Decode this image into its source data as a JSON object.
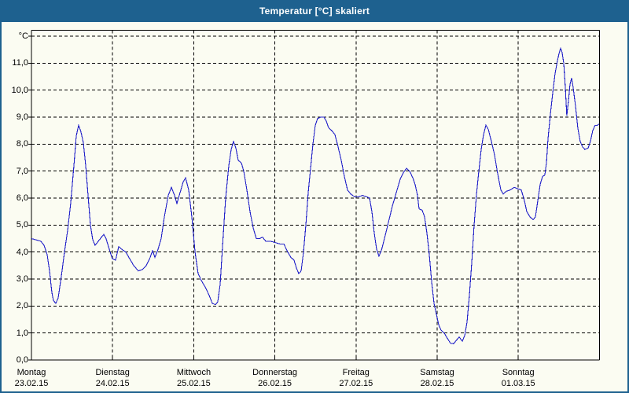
{
  "window": {
    "title": "Temperatur [°C] skaliert"
  },
  "colors": {
    "titlebar": "#1E618F",
    "window_border": "#1E618F",
    "background": "#FBFCF2",
    "grid": "#000000",
    "curve": "#2121C8",
    "title_text": "#FFFFFF"
  },
  "chart_data": {
    "type": "line",
    "title": "Temperatur [°C] skaliert",
    "y_unit_label": "°C",
    "ylabel": "°C",
    "xlabel": "",
    "ylim": [
      0,
      12
    ],
    "x_range_days": [
      0,
      7
    ],
    "grid": "dashed",
    "legend_position": "none",
    "y_ticks": [
      {
        "value": 12,
        "label": "°C"
      },
      {
        "value": 11,
        "label": "11,0"
      },
      {
        "value": 10,
        "label": "10,0"
      },
      {
        "value": 9,
        "label": "9,0"
      },
      {
        "value": 8,
        "label": "8,0"
      },
      {
        "value": 7,
        "label": "7,0"
      },
      {
        "value": 6,
        "label": "6,0"
      },
      {
        "value": 5,
        "label": "5,0"
      },
      {
        "value": 4,
        "label": "4,0"
      },
      {
        "value": 3,
        "label": "3,0"
      },
      {
        "value": 2,
        "label": "2,0"
      },
      {
        "value": 1,
        "label": "1,0"
      },
      {
        "value": 0,
        "label": "0,0"
      }
    ],
    "x_days": [
      {
        "weekday": "Montag",
        "date": "23.02.15"
      },
      {
        "weekday": "Dienstag",
        "date": "24.02.15"
      },
      {
        "weekday": "Mittwoch",
        "date": "25.02.15"
      },
      {
        "weekday": "Donnerstag",
        "date": "26.02.15"
      },
      {
        "weekday": "Freitag",
        "date": "27.02.15"
      },
      {
        "weekday": "Samstag",
        "date": "28.02.15"
      },
      {
        "weekday": "Sonntag",
        "date": "01.03.15"
      }
    ],
    "series": [
      {
        "name": "Temperatur",
        "color": "#2121C8",
        "points": [
          [
            0,
            4.5
          ],
          [
            0.058,
            4.45
          ],
          [
            0.116,
            4.4
          ],
          [
            0.155,
            4.25
          ],
          [
            0.194,
            3.9
          ],
          [
            0.223,
            3.3
          ],
          [
            0.252,
            2.5
          ],
          [
            0.271,
            2.2
          ],
          [
            0.3,
            2.1
          ],
          [
            0.329,
            2.3
          ],
          [
            0.368,
            3.1
          ],
          [
            0.407,
            4.0
          ],
          [
            0.446,
            4.8
          ],
          [
            0.484,
            5.8
          ],
          [
            0.523,
            7.2
          ],
          [
            0.552,
            8.3
          ],
          [
            0.581,
            8.7
          ],
          [
            0.61,
            8.45
          ],
          [
            0.64,
            8.05
          ],
          [
            0.669,
            7.2
          ],
          [
            0.698,
            6.1
          ],
          [
            0.727,
            5.0
          ],
          [
            0.756,
            4.45
          ],
          [
            0.785,
            4.25
          ],
          [
            0.824,
            4.4
          ],
          [
            0.862,
            4.55
          ],
          [
            0.891,
            4.65
          ],
          [
            0.92,
            4.5
          ],
          [
            0.959,
            4.1
          ],
          [
            0.998,
            3.75
          ],
          [
            1.037,
            3.7
          ],
          [
            1.076,
            4.2
          ],
          [
            1.114,
            4.1
          ],
          [
            1.163,
            4.0
          ],
          [
            1.211,
            3.75
          ],
          [
            1.26,
            3.5
          ],
          [
            1.318,
            3.3
          ],
          [
            1.366,
            3.35
          ],
          [
            1.415,
            3.5
          ],
          [
            1.463,
            3.8
          ],
          [
            1.492,
            4.05
          ],
          [
            1.521,
            3.8
          ],
          [
            1.56,
            4.1
          ],
          [
            1.599,
            4.5
          ],
          [
            1.638,
            5.3
          ],
          [
            1.686,
            6.1
          ],
          [
            1.725,
            6.4
          ],
          [
            1.764,
            6.1
          ],
          [
            1.793,
            5.8
          ],
          [
            1.831,
            6.2
          ],
          [
            1.87,
            6.6
          ],
          [
            1.899,
            6.75
          ],
          [
            1.938,
            6.3
          ],
          [
            1.977,
            5.3
          ],
          [
            2.016,
            4.0
          ],
          [
            2.054,
            3.2
          ],
          [
            2.093,
            2.95
          ],
          [
            2.141,
            2.7
          ],
          [
            2.19,
            2.4
          ],
          [
            2.229,
            2.1
          ],
          [
            2.267,
            2.05
          ],
          [
            2.296,
            2.15
          ],
          [
            2.326,
            2.8
          ],
          [
            2.355,
            4.2
          ],
          [
            2.393,
            6.0
          ],
          [
            2.432,
            7.2
          ],
          [
            2.461,
            7.8
          ],
          [
            2.49,
            8.1
          ],
          [
            2.519,
            7.85
          ],
          [
            2.548,
            7.4
          ],
          [
            2.587,
            7.3
          ],
          [
            2.616,
            7.0
          ],
          [
            2.655,
            6.3
          ],
          [
            2.694,
            5.5
          ],
          [
            2.733,
            4.9
          ],
          [
            2.771,
            4.5
          ],
          [
            2.81,
            4.5
          ],
          [
            2.849,
            4.55
          ],
          [
            2.888,
            4.4
          ],
          [
            2.946,
            4.4
          ],
          [
            3.004,
            4.35
          ],
          [
            3.062,
            4.3
          ],
          [
            3.11,
            4.3
          ],
          [
            3.159,
            4.0
          ],
          [
            3.198,
            3.8
          ],
          [
            3.236,
            3.7
          ],
          [
            3.266,
            3.4
          ],
          [
            3.295,
            3.2
          ],
          [
            3.324,
            3.3
          ],
          [
            3.353,
            4.0
          ],
          [
            3.382,
            5.0
          ],
          [
            3.411,
            6.2
          ],
          [
            3.44,
            7.1
          ],
          [
            3.469,
            8.0
          ],
          [
            3.498,
            8.7
          ],
          [
            3.527,
            8.95
          ],
          [
            3.566,
            9.0
          ],
          [
            3.605,
            9.0
          ],
          [
            3.634,
            8.85
          ],
          [
            3.663,
            8.6
          ],
          [
            3.702,
            8.5
          ],
          [
            3.74,
            8.35
          ],
          [
            3.779,
            7.9
          ],
          [
            3.818,
            7.4
          ],
          [
            3.857,
            6.8
          ],
          [
            3.895,
            6.3
          ],
          [
            3.934,
            6.15
          ],
          [
            3.983,
            6.05
          ],
          [
            4.031,
            6.05
          ],
          [
            4.08,
            6.1
          ],
          [
            4.128,
            6.05
          ],
          [
            4.167,
            6.0
          ],
          [
            4.196,
            5.5
          ],
          [
            4.225,
            4.7
          ],
          [
            4.254,
            4.1
          ],
          [
            4.283,
            3.85
          ],
          [
            4.312,
            4.05
          ],
          [
            4.351,
            4.5
          ],
          [
            4.399,
            5.1
          ],
          [
            4.448,
            5.7
          ],
          [
            4.496,
            6.2
          ],
          [
            4.545,
            6.7
          ],
          [
            4.584,
            6.95
          ],
          [
            4.622,
            7.1
          ],
          [
            4.661,
            7.0
          ],
          [
            4.7,
            6.75
          ],
          [
            4.729,
            6.5
          ],
          [
            4.758,
            6.1
          ],
          [
            4.777,
            5.6
          ],
          [
            4.816,
            5.55
          ],
          [
            4.845,
            5.3
          ],
          [
            4.874,
            4.7
          ],
          [
            4.903,
            3.9
          ],
          [
            4.932,
            2.9
          ],
          [
            4.961,
            2.1
          ],
          [
            4.99,
            1.7
          ],
          [
            5.019,
            1.3
          ],
          [
            5.048,
            1.1
          ],
          [
            5.087,
            1.0
          ],
          [
            5.126,
            0.8
          ],
          [
            5.165,
            0.62
          ],
          [
            5.203,
            0.6
          ],
          [
            5.242,
            0.75
          ],
          [
            5.271,
            0.85
          ],
          [
            5.31,
            0.7
          ],
          [
            5.339,
            0.9
          ],
          [
            5.368,
            1.4
          ],
          [
            5.397,
            2.4
          ],
          [
            5.426,
            3.6
          ],
          [
            5.455,
            5.0
          ],
          [
            5.484,
            6.1
          ],
          [
            5.514,
            7.0
          ],
          [
            5.543,
            7.8
          ],
          [
            5.572,
            8.35
          ],
          [
            5.601,
            8.7
          ],
          [
            5.63,
            8.55
          ],
          [
            5.669,
            8.1
          ],
          [
            5.707,
            7.6
          ],
          [
            5.746,
            6.9
          ],
          [
            5.785,
            6.3
          ],
          [
            5.814,
            6.15
          ],
          [
            5.853,
            6.25
          ],
          [
            5.901,
            6.3
          ],
          [
            5.95,
            6.4
          ],
          [
            5.988,
            6.35
          ],
          [
            6.037,
            6.3
          ],
          [
            6.076,
            5.9
          ],
          [
            6.105,
            5.5
          ],
          [
            6.144,
            5.3
          ],
          [
            6.182,
            5.2
          ],
          [
            6.211,
            5.3
          ],
          [
            6.24,
            5.9
          ],
          [
            6.269,
            6.5
          ],
          [
            6.298,
            6.8
          ],
          [
            6.327,
            6.85
          ],
          [
            6.347,
            7.3
          ],
          [
            6.366,
            8.2
          ],
          [
            6.395,
            9.1
          ],
          [
            6.424,
            9.9
          ],
          [
            6.453,
            10.6
          ],
          [
            6.483,
            11.1
          ],
          [
            6.502,
            11.35
          ],
          [
            6.521,
            11.55
          ],
          [
            6.54,
            11.4
          ],
          [
            6.56,
            11.0
          ],
          [
            6.579,
            10.1
          ],
          [
            6.598,
            9.05
          ],
          [
            6.618,
            9.6
          ],
          [
            6.637,
            10.2
          ],
          [
            6.657,
            10.45
          ],
          [
            6.676,
            10.1
          ],
          [
            6.705,
            9.4
          ],
          [
            6.734,
            8.6
          ],
          [
            6.763,
            8.1
          ],
          [
            6.792,
            7.9
          ],
          [
            6.821,
            7.8
          ],
          [
            6.86,
            7.85
          ],
          [
            6.889,
            8.1
          ],
          [
            6.918,
            8.5
          ],
          [
            6.947,
            8.7
          ],
          [
            6.976,
            8.7
          ],
          [
            6.996,
            8.75
          ]
        ]
      }
    ]
  }
}
